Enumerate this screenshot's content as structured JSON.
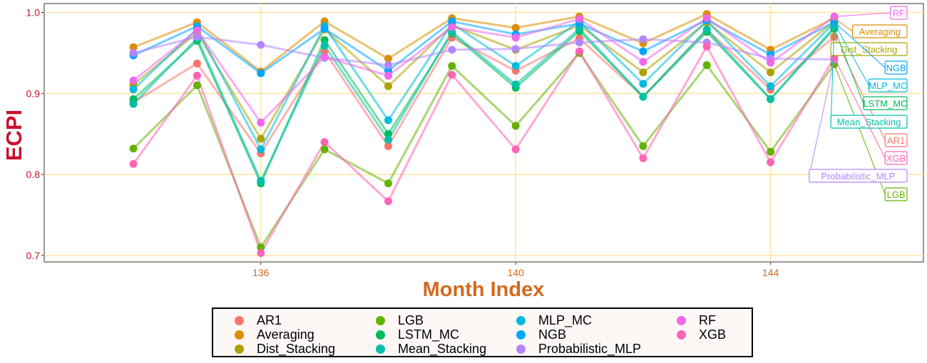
{
  "chart_data": {
    "type": "line",
    "title": "",
    "xlabel": "Month Index",
    "ylabel": "ECPI",
    "x": [
      134,
      135,
      136,
      137,
      138,
      139,
      140,
      141,
      142,
      143,
      144,
      145
    ],
    "xlim": [
      132.6,
      146.4
    ],
    "ylim": [
      0.692,
      1.011
    ],
    "xticks": [
      136,
      140,
      144
    ],
    "yticks": [
      0.7,
      0.8,
      0.9,
      1.0
    ],
    "ytick_labels": [
      "0.7",
      "0.8",
      "0.9",
      "1.0"
    ],
    "grid": true,
    "legend_position": "bottom",
    "series": [
      {
        "name": "AR1",
        "color": "#F8766D",
        "values": [
          0.889,
          0.937,
          0.826,
          0.952,
          0.835,
          0.969,
          0.928,
          0.968,
          0.896,
          0.979,
          0.905,
          0.97
        ]
      },
      {
        "name": "Averaging",
        "color": "#DB8E00",
        "values": [
          0.957,
          0.988,
          0.927,
          0.989,
          0.943,
          0.993,
          0.981,
          0.995,
          0.962,
          0.998,
          0.954,
          0.993
        ]
      },
      {
        "name": "Dist_Stacking",
        "color": "#AEA200",
        "values": [
          0.911,
          0.975,
          0.844,
          0.979,
          0.909,
          0.984,
          0.954,
          0.984,
          0.926,
          0.988,
          0.926,
          0.989
        ]
      },
      {
        "name": "LGB",
        "color": "#64B200",
        "values": [
          0.832,
          0.91,
          0.71,
          0.831,
          0.789,
          0.934,
          0.86,
          0.95,
          0.835,
          0.935,
          0.828,
          0.936
        ]
      },
      {
        "name": "LSTM_MC",
        "color": "#00BD5C",
        "values": [
          0.893,
          0.965,
          0.789,
          0.966,
          0.85,
          0.974,
          0.907,
          0.977,
          0.896,
          0.976,
          0.893,
          0.98
        ]
      },
      {
        "name": "Mean_Stacking",
        "color": "#00C1A7",
        "values": [
          0.887,
          0.968,
          0.792,
          0.959,
          0.843,
          0.976,
          0.911,
          0.98,
          0.896,
          0.979,
          0.893,
          0.982
        ]
      },
      {
        "name": "MLP_MC",
        "color": "#00BADE",
        "values": [
          0.905,
          0.98,
          0.831,
          0.983,
          0.867,
          0.986,
          0.934,
          0.989,
          0.912,
          0.99,
          0.909,
          0.987
        ]
      },
      {
        "name": "NGB",
        "color": "#00A6FF",
        "values": [
          0.947,
          0.983,
          0.925,
          0.98,
          0.928,
          0.989,
          0.973,
          0.986,
          0.952,
          0.991,
          0.948,
          0.988
        ]
      },
      {
        "name": "Probabilistic_MLP",
        "color": "#B385FF",
        "values": [
          0.95,
          0.97,
          0.96,
          0.944,
          0.935,
          0.954,
          0.955,
          0.963,
          0.967,
          0.963,
          0.943,
          0.942
        ]
      },
      {
        "name": "RF",
        "color": "#EF67EB",
        "values": [
          0.916,
          0.978,
          0.864,
          0.945,
          0.922,
          0.982,
          0.969,
          0.992,
          0.939,
          0.993,
          0.938,
          0.995
        ]
      },
      {
        "name": "XGB",
        "color": "#FF63B6",
        "values": [
          0.813,
          0.922,
          0.703,
          0.84,
          0.767,
          0.923,
          0.831,
          0.952,
          0.82,
          0.958,
          0.815,
          0.944
        ]
      }
    ]
  }
}
